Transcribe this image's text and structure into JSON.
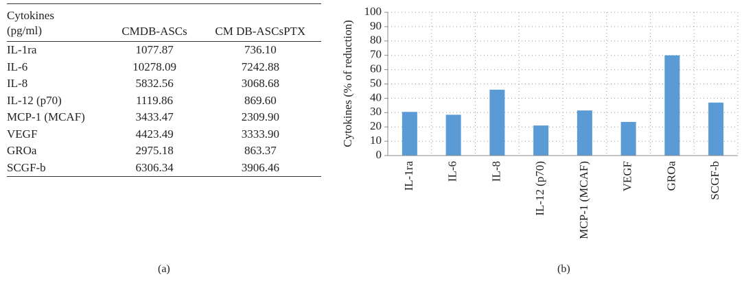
{
  "table": {
    "header": [
      "Cytokines (pg/ml)",
      "CMDB-ASCs",
      "CM DB-ASCsPTX"
    ],
    "rows": [
      [
        "IL-1ra",
        "1077.87",
        "736.10"
      ],
      [
        "IL-6",
        "10278.09",
        "7242.88"
      ],
      [
        "IL-8",
        "5832.56",
        "3068.68"
      ],
      [
        "IL-12 (p70)",
        "1119.86",
        "869.60"
      ],
      [
        "MCP-1 (MCAF)",
        "3433.47",
        "2309.90"
      ],
      [
        "VEGF",
        "4423.49",
        "3333.90"
      ],
      [
        "GROa",
        "2975.18",
        "863.37"
      ],
      [
        "SCGF-b",
        "6306.34",
        "3906.46"
      ]
    ],
    "label": "(a)"
  },
  "chart_data": {
    "type": "bar",
    "label": "(b)",
    "y_label": "Cytokines (% of reduction)",
    "categories": [
      "IL-1ra",
      "IL-6",
      "IL-8",
      "IL-12 (p70)",
      "MCP-1 (MCAF)",
      "VEGF",
      "GROa",
      "SCGF-b"
    ],
    "values": [
      30.5,
      28.5,
      46,
      21,
      31.5,
      23.5,
      70,
      37
    ],
    "color": "#5b9bd5",
    "ylim": [
      0,
      100
    ],
    "yticks": [
      0,
      10,
      20,
      30,
      40,
      50,
      60,
      70,
      80,
      90,
      100
    ],
    "grid": true
  }
}
